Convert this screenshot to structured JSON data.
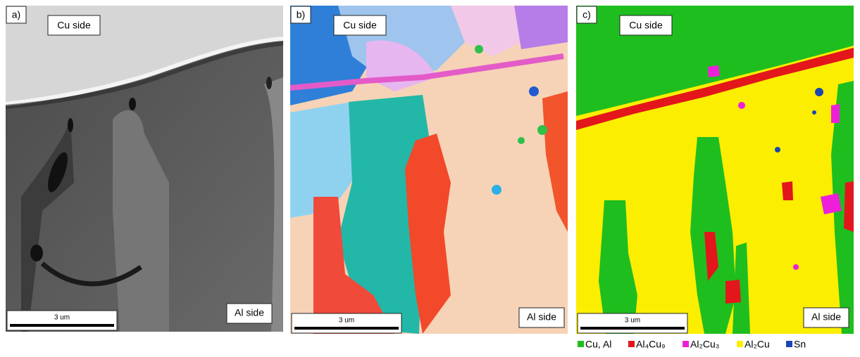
{
  "panels": [
    {
      "label": "a)",
      "top_label": "Cu side",
      "bottom_label": "Al side",
      "scale_bar": "3 um"
    },
    {
      "label": "b)",
      "top_label": "Cu side",
      "bottom_label": "Al side",
      "scale_bar": "3 um"
    },
    {
      "label": "c)",
      "top_label": "Cu side",
      "bottom_label": "Al side",
      "scale_bar": "3 um"
    }
  ],
  "legend": [
    {
      "label": "Cu, Al",
      "color": "#1fbe1f"
    },
    {
      "label": "Al₄Cu₉",
      "color": "#e3161c"
    },
    {
      "label": "Al₂Cu₃",
      "color": "#ee1fd9"
    },
    {
      "label": "Al₂Cu",
      "color": "#fbee00"
    },
    {
      "label": "Sn",
      "color": "#1a47b2"
    }
  ]
}
